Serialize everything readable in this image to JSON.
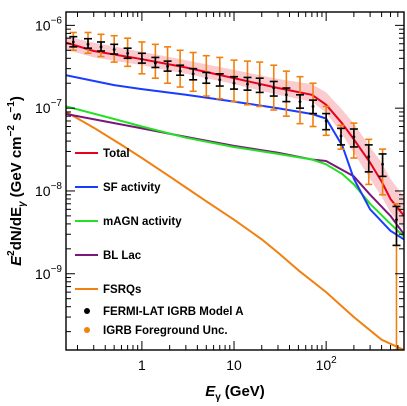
{
  "chart_data": {
    "type": "line",
    "x_axis": {
      "label_main": "E",
      "label_sub": "γ",
      "label_unit": "(GeV)",
      "scale": "log",
      "range": [
        0.15,
        700
      ],
      "major_ticks": [
        {
          "value": 1,
          "base": "1",
          "exp": ""
        },
        {
          "value": 10,
          "base": "10",
          "exp": ""
        },
        {
          "value": 100,
          "base": "10",
          "exp": "2"
        }
      ]
    },
    "y_axis": {
      "label_main": "E",
      "label_sub": "γ",
      "label_sup": "2",
      "label_rest": "dN/dE",
      "label_sub2": "γ",
      "label_unit_open": "(GeV cm",
      "label_unit_sup1": "−2",
      "label_unit_mid": " s",
      "label_unit_sup2": "−1",
      "label_unit_close": ")",
      "scale": "log",
      "range": [
        1.2e-10,
        1.45e-06
      ],
      "major_ticks": [
        {
          "value": 1e-09,
          "base": "10",
          "exp": "−9"
        },
        {
          "value": 1e-08,
          "base": "10",
          "exp": "−8"
        },
        {
          "value": 1e-07,
          "base": "10",
          "exp": "−7"
        },
        {
          "value": 1e-06,
          "base": "10",
          "exp": "−6"
        }
      ]
    },
    "grid": false,
    "legend_placement": "left",
    "series": [
      {
        "name": "Total",
        "color": "#e8001c",
        "x": [
          0.15,
          0.3,
          1,
          3,
          10,
          30,
          70,
          100,
          150,
          200,
          300,
          400,
          500,
          700
        ],
        "y": [
          6.2e-07,
          4.9e-07,
          3.9e-07,
          3.1e-07,
          2.3e-07,
          1.75e-07,
          1.45e-07,
          1.1e-07,
          6.5e-08,
          4.2e-08,
          2.2e-08,
          1.3e-08,
          8e-09,
          5e-09
        ]
      },
      {
        "name": "SF activity",
        "color": "#1a3cff",
        "x": [
          0.15,
          0.5,
          1,
          3,
          10,
          30,
          70,
          100,
          150,
          200,
          300,
          500,
          700
        ],
        "y": [
          2.5e-07,
          1.9e-07,
          1.7e-07,
          1.45e-07,
          1.2e-07,
          1e-07,
          8.5e-08,
          7.5e-08,
          3.5e-08,
          1.4e-08,
          6e-09,
          3.3e-09,
          2.6e-09
        ]
      },
      {
        "name": "mAGN activity",
        "color": "#22e022",
        "x": [
          0.15,
          0.5,
          1,
          3,
          10,
          30,
          70,
          100,
          150,
          200,
          300,
          500,
          700
        ],
        "y": [
          1.05e-07,
          7.4e-08,
          6e-08,
          4.4e-08,
          3.4e-08,
          2.8e-08,
          2.4e-08,
          2.1e-08,
          1.6e-08,
          1.2e-08,
          7e-09,
          4e-09,
          2.8e-09
        ]
      },
      {
        "name": "BL Lac",
        "color": "#7b167b",
        "x": [
          0.15,
          0.5,
          1,
          3,
          10,
          30,
          70,
          100,
          200,
          300,
          500,
          700
        ],
        "y": [
          8.5e-08,
          6.6e-08,
          5.7e-08,
          4.5e-08,
          3.5e-08,
          2.9e-08,
          2.4e-08,
          2.3e-08,
          1.5e-08,
          9e-09,
          5e-09,
          3e-09
        ]
      },
      {
        "name": "FSRQs",
        "color": "#f08010",
        "x": [
          0.15,
          0.3,
          0.6,
          1,
          2,
          3,
          5,
          10,
          20,
          30,
          50,
          100,
          200,
          400,
          700
        ],
        "y": [
          9e-08,
          5.8e-08,
          3.6e-08,
          2.5e-08,
          1.5e-08,
          1.1e-08,
          7.5e-09,
          4.5e-09,
          2.6e-09,
          1.8e-09,
          1.1e-09,
          6e-10,
          3e-10,
          1.6e-10,
          1.2e-10
        ]
      }
    ],
    "points": [
      {
        "name": "FERMI-LAT IGRB Model A",
        "color": "#000000",
        "x": [
          0.13,
          0.18,
          0.26,
          0.36,
          0.5,
          0.7,
          1.0,
          1.4,
          1.9,
          2.6,
          3.6,
          5.0,
          7.0,
          10,
          14,
          19,
          27,
          37,
          52,
          72,
          100,
          145,
          200,
          290,
          410,
          580
        ],
        "y": [
          6.2e-07,
          6.3e-07,
          5.9e-07,
          5.5e-07,
          5.1e-07,
          4.6e-07,
          3.9e-07,
          3.5e-07,
          3.2e-07,
          2.8e-07,
          2.6e-07,
          2.3e-07,
          2.2e-07,
          2e-07,
          1.95e-07,
          1.9e-07,
          1.75e-07,
          1.45e-07,
          1.2e-07,
          1.05e-07,
          7e-08,
          4.6e-08,
          4.5e-08,
          2.6e-08,
          2.1e-08,
          4.5e-09
        ],
        "err_lo": [
          5.2e-07,
          5.5e-07,
          5.3e-07,
          4.9e-07,
          4.5e-07,
          4e-07,
          3.5e-07,
          3.1e-07,
          2.8e-07,
          2.5e-07,
          2.2e-07,
          2e-07,
          1.85e-07,
          1.7e-07,
          1.65e-07,
          1.55e-07,
          1.4e-07,
          1.2e-07,
          1e-07,
          8.6e-08,
          5.5e-08,
          3.6e-08,
          3.4e-08,
          1.7e-08,
          1.5e-08,
          2.2e-09
        ],
        "err_hi": [
          7.4e-07,
          7.3e-07,
          6.9e-07,
          6.3e-07,
          5.9e-07,
          5.3e-07,
          4.6e-07,
          4.1e-07,
          3.7e-07,
          3.3e-07,
          3e-07,
          2.7e-07,
          2.6e-07,
          2.4e-07,
          2.35e-07,
          2.3e-07,
          2.1e-07,
          1.75e-07,
          1.45e-07,
          1.25e-07,
          8.6e-08,
          5.7e-08,
          5.6e-08,
          3.6e-08,
          2.8e-08,
          6.5e-09
        ]
      },
      {
        "name": "IGRB Foreground Unc.",
        "color": "#f08010",
        "x": [
          0.13,
          0.18,
          0.26,
          0.36,
          0.5,
          0.7,
          1.0,
          1.4,
          1.9,
          2.6,
          3.6,
          5.0,
          7.0,
          10,
          14,
          19,
          27,
          37,
          52,
          72,
          100,
          145,
          200,
          290,
          410,
          580
        ],
        "y": [
          6.2e-07,
          6.3e-07,
          5.9e-07,
          5.5e-07,
          5.1e-07,
          4.6e-07,
          3.9e-07,
          3.5e-07,
          3.2e-07,
          2.8e-07,
          2.6e-07,
          2.3e-07,
          2.2e-07,
          2e-07,
          1.95e-07,
          1.9e-07,
          1.75e-07,
          1.45e-07,
          1.2e-07,
          1.05e-07,
          7e-08,
          4.6e-08,
          4.5e-08,
          2.6e-08,
          2.1e-08,
          4.5e-09
        ],
        "err_lo": [
          4.9e-07,
          5e-07,
          4.6e-07,
          4.2e-07,
          3.6e-07,
          3.2e-07,
          2.6e-07,
          2.3e-07,
          2e-07,
          1.8e-07,
          1.6e-07,
          1.4e-07,
          1.3e-07,
          1.2e-07,
          1.1e-07,
          1.05e-07,
          9.5e-08,
          8e-08,
          6.5e-08,
          6e-08,
          4.7e-08,
          3.2e-08,
          2.5e-08,
          1.2e-08,
          9e-09,
          1.2e-10
        ],
        "err_hi": [
          7.8e-07,
          8.2e-07,
          8.2e-07,
          7.8e-07,
          7.5e-07,
          7e-07,
          6.3e-07,
          5.9e-07,
          5.5e-07,
          5e-07,
          4.7e-07,
          4.3e-07,
          4.1e-07,
          3.8e-07,
          3.7e-07,
          3.6e-07,
          3.3e-07,
          2.8e-07,
          2.4e-07,
          2e-07,
          1.05e-07,
          6.2e-08,
          6.6e-08,
          4.2e-08,
          3.2e-08,
          7e-09
        ]
      }
    ],
    "band": {
      "color": "#f5a0a8",
      "x": [
        0.15,
        0.3,
        1,
        3,
        10,
        30,
        70,
        100,
        150,
        200,
        300,
        400,
        500,
        700
      ],
      "y_lo": [
        5.1e-07,
        4.1e-07,
        3.3e-07,
        2.6e-07,
        1.95e-07,
        1.45e-07,
        1.2e-07,
        8.8e-08,
        4.8e-08,
        2.9e-08,
        1.4e-08,
        8.5e-09,
        5.5e-09,
        3.5e-09
      ],
      "y_hi": [
        7.4e-07,
        6.2e-07,
        4.8e-07,
        3.8e-07,
        2.9e-07,
        2.25e-07,
        1.95e-07,
        1.55e-07,
        9.5e-08,
        6.5e-08,
        3.4e-08,
        2.2e-08,
        1.4e-08,
        8.5e-09
      ]
    }
  }
}
